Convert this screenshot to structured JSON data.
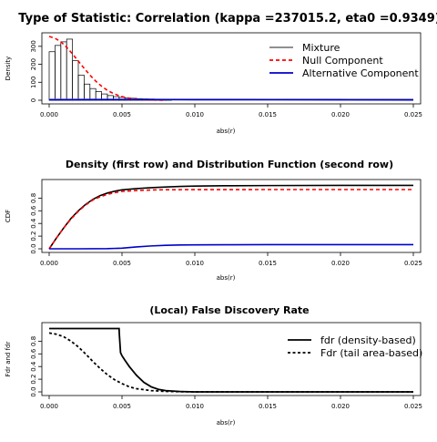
{
  "chart_data": [
    {
      "type": "histogram",
      "title": "Type of Statistic: Correlation (kappa =237015.2, eta0 =0.9349)",
      "xlabel": "abs(r)",
      "ylabel": "Density",
      "xlim": [
        0,
        0.025
      ],
      "ylim": [
        0,
        360
      ],
      "xticks": [
        "0.000",
        "0.005",
        "0.010",
        "0.015",
        "0.020",
        "0.025"
      ],
      "yticks": [
        "0",
        "100",
        "200",
        "300"
      ],
      "legend": {
        "position": "top-right",
        "entries": [
          "Mixture",
          "Null Component",
          "Alternative Component"
        ]
      },
      "histogram": {
        "bin_width": 0.0004,
        "bins": [
          0.0,
          0.0004,
          0.0008,
          0.0012,
          0.0016,
          0.002,
          0.0024,
          0.0028,
          0.0032,
          0.0036,
          0.004,
          0.0044,
          0.0048,
          0.0052,
          0.0056,
          0.006,
          0.0064,
          0.0068,
          0.0072,
          0.0076,
          0.008
        ],
        "density": [
          270,
          305,
          325,
          340,
          220,
          140,
          90,
          65,
          48,
          35,
          26,
          20,
          16,
          13,
          11,
          9,
          8,
          7,
          6,
          5,
          4
        ]
      },
      "series": [
        {
          "name": "Mixture",
          "color": "#808080",
          "style": "solid",
          "x": [
            0,
            0.001,
            0.002,
            0.003,
            0.004,
            0.005,
            0.006,
            0.008,
            0.01,
            0.015,
            0.02,
            0.025
          ],
          "y": [
            5,
            5,
            5,
            5,
            5,
            5,
            5,
            5,
            5,
            5,
            5,
            5
          ]
        },
        {
          "name": "Null Component",
          "color": "#ff0000",
          "style": "dashed",
          "x": [
            0,
            0.0004,
            0.0008,
            0.0012,
            0.0016,
            0.002,
            0.0024,
            0.0028,
            0.0032,
            0.0036,
            0.004,
            0.0044,
            0.0048,
            0.0052,
            0.0056,
            0.006,
            0.0065,
            0.007,
            0.008
          ],
          "y": [
            355,
            345,
            325,
            295,
            258,
            218,
            178,
            140,
            106,
            78,
            55,
            38,
            25,
            16,
            10,
            6,
            3,
            1.5,
            0
          ]
        },
        {
          "name": "Alternative Component",
          "color": "#0000cc",
          "style": "solid",
          "x": [
            0,
            0.002,
            0.004,
            0.006,
            0.008,
            0.01,
            0.015,
            0.02,
            0.025
          ],
          "y": [
            2,
            3,
            3.5,
            3.5,
            3.2,
            3,
            2.5,
            2,
            1.5
          ]
        }
      ]
    },
    {
      "type": "line",
      "title": "Density (first row) and Distribution Function (second row)",
      "xlabel": "abs(r)",
      "ylabel": "CDF",
      "xlim": [
        0,
        0.025
      ],
      "ylim": [
        0,
        1.05
      ],
      "xticks": [
        "0.000",
        "0.005",
        "0.010",
        "0.015",
        "0.020",
        "0.025"
      ],
      "yticks": [
        "0.0",
        "0.2",
        "0.4",
        "0.6",
        "0.8"
      ],
      "series": [
        {
          "name": "Mixture",
          "color": "#000000",
          "style": "solid",
          "x": [
            0,
            0.0005,
            0.001,
            0.0015,
            0.002,
            0.0025,
            0.003,
            0.0035,
            0.004,
            0.0045,
            0.005,
            0.006,
            0.007,
            0.008,
            0.009,
            0.01,
            0.012,
            0.015,
            0.02,
            0.025
          ],
          "y": [
            0,
            0.17,
            0.33,
            0.48,
            0.6,
            0.7,
            0.78,
            0.84,
            0.88,
            0.91,
            0.93,
            0.95,
            0.965,
            0.975,
            0.985,
            0.99,
            0.995,
            0.998,
            1.0,
            1.0
          ]
        },
        {
          "name": "Null Component",
          "color": "#ff0000",
          "style": "dashed",
          "x": [
            0,
            0.0005,
            0.001,
            0.0015,
            0.002,
            0.0025,
            0.003,
            0.0035,
            0.004,
            0.0045,
            0.005,
            0.006,
            0.007,
            0.008,
            0.01,
            0.015,
            0.02,
            0.025
          ],
          "y": [
            0,
            0.17,
            0.33,
            0.47,
            0.59,
            0.69,
            0.77,
            0.82,
            0.86,
            0.885,
            0.905,
            0.92,
            0.928,
            0.932,
            0.934,
            0.935,
            0.935,
            0.935
          ]
        },
        {
          "name": "Alternative Component",
          "color": "#0000cc",
          "style": "solid",
          "x": [
            0,
            0.002,
            0.004,
            0.005,
            0.006,
            0.007,
            0.008,
            0.009,
            0.01,
            0.012,
            0.015,
            0.02,
            0.025
          ],
          "y": [
            0,
            0,
            0.002,
            0.01,
            0.03,
            0.045,
            0.055,
            0.06,
            0.062,
            0.064,
            0.065,
            0.065,
            0.065
          ]
        }
      ]
    },
    {
      "type": "line",
      "title": "(Local) False Discovery Rate",
      "xlabel": "abs(r)",
      "ylabel": "Fdr and fdr",
      "xlim": [
        0,
        0.025
      ],
      "ylim": [
        0,
        1.05
      ],
      "xticks": [
        "0.000",
        "0.005",
        "0.010",
        "0.015",
        "0.020",
        "0.025"
      ],
      "yticks": [
        "0.0",
        "0.2",
        "0.4",
        "0.6",
        "0.8"
      ],
      "legend": {
        "position": "top-right",
        "entries": [
          "fdr (density-based)",
          "Fdr (tail area-based)"
        ]
      },
      "series": [
        {
          "name": "fdr (density-based)",
          "color": "#000000",
          "style": "solid",
          "x": [
            0,
            0.0048,
            0.00482,
            0.0049,
            0.005,
            0.0052,
            0.0055,
            0.006,
            0.0065,
            0.007,
            0.0075,
            0.008,
            0.009,
            0.01,
            0.015,
            0.02,
            0.025
          ],
          "y": [
            1.0,
            1.0,
            0.9,
            0.62,
            0.57,
            0.5,
            0.4,
            0.26,
            0.15,
            0.08,
            0.04,
            0.02,
            0.005,
            0.0,
            0.0,
            0.0,
            0.0
          ]
        },
        {
          "name": "Fdr (tail area-based)",
          "color": "#000000",
          "style": "dotted",
          "x": [
            0,
            0.0005,
            0.001,
            0.0015,
            0.002,
            0.0025,
            0.003,
            0.0035,
            0.004,
            0.0045,
            0.005,
            0.0055,
            0.006,
            0.007,
            0.008,
            0.009,
            0.01,
            0.015,
            0.02,
            0.025
          ],
          "y": [
            0.93,
            0.91,
            0.87,
            0.8,
            0.71,
            0.6,
            0.48,
            0.37,
            0.27,
            0.19,
            0.13,
            0.08,
            0.05,
            0.02,
            0.008,
            0.003,
            0.001,
            0.0,
            0.0,
            0.0
          ]
        }
      ]
    }
  ]
}
